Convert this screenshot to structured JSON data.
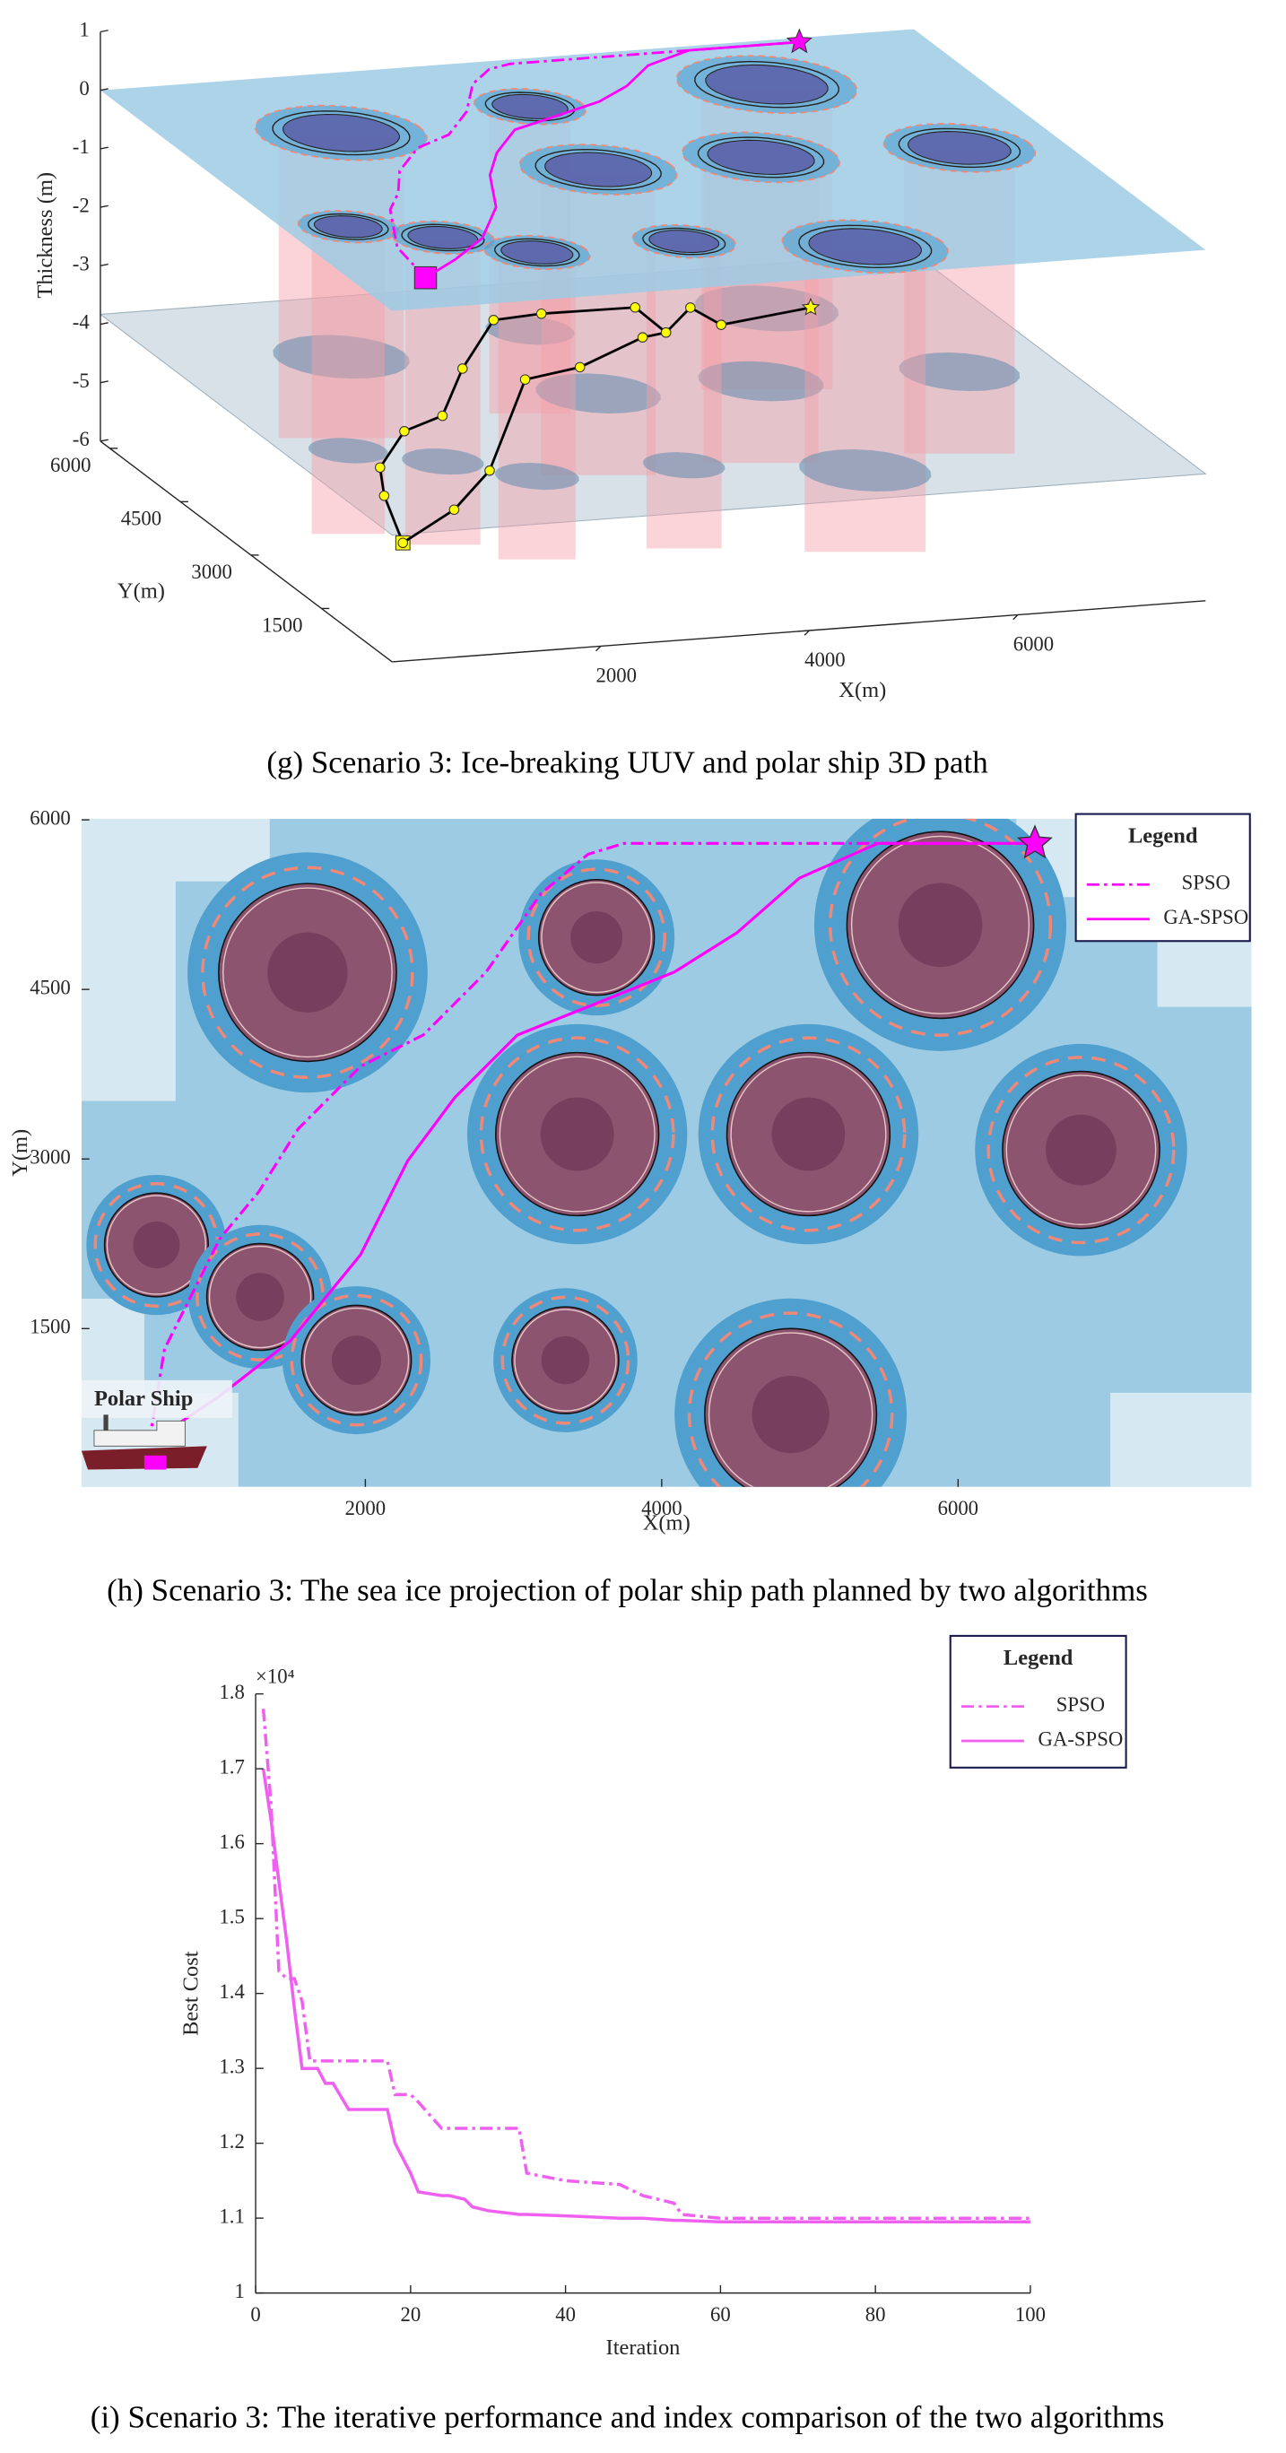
{
  "chart_data": [
    {
      "type": "line3d",
      "caption": "(g) Scenario 3: Ice-breaking UUV and polar ship 3D path",
      "xlabel": "X(m)",
      "ylabel": "Y(m)",
      "zlabel": "Thickness (m)",
      "xlim": [
        0,
        7800
      ],
      "ylim": [
        0,
        6200
      ],
      "zlim": [
        -6,
        1
      ],
      "xticks": [
        2000,
        4000,
        6000
      ],
      "yticks": [
        1500,
        3000,
        4500,
        6000
      ],
      "zticks": [
        1,
        0,
        -1,
        -2,
        -3,
        -4,
        -5,
        -6
      ],
      "series": [
        {
          "color": "#ff00ff",
          "style": "dashdot",
          "x": [
            540,
            645,
            857,
            1016,
            1280,
            1545,
            1968,
            2391,
            2814,
            3185,
            3502,
            3745,
            6518
          ],
          "y": [
            486,
            1319,
            1875,
            2292,
            2708,
            3264,
            3819,
            4097,
            4653,
            5347,
            5695,
            5792,
            5792
          ],
          "z": [
            0.2,
            0.2,
            0.2,
            0.2,
            0.2,
            0.2,
            0.2,
            0.2,
            0.2,
            0.2,
            0.2,
            0.2,
            0.2
          ]
        },
        {
          "color": "#ff00ff",
          "style": "solid",
          "x": [
            540,
            1016,
            1492,
            1968,
            2286,
            2603,
            3026,
            3555,
            4084,
            4507,
            4930,
            5459,
            6518
          ],
          "y": [
            486,
            903,
            1389,
            2153,
            2986,
            3542,
            4097,
            4375,
            4653,
            5000,
            5486,
            5792,
            5792
          ],
          "z": [
            0.2,
            0.2,
            0.2,
            0.2,
            0.2,
            0.2,
            0.2,
            0.2,
            0.2,
            0.2,
            0.2,
            0.2,
            0.2
          ]
        },
        {
          "color": "#000000",
          "marker_color": "#ffff00",
          "style": "solid",
          "x": [
            320,
            700,
            990,
            1620,
            2130,
            2850,
            3680,
            4170,
            5060,
            5040,
            5540,
            5610,
            6590
          ],
          "y": [
            480,
            1720,
            2450,
            3330,
            3650,
            4820,
            6000,
            6070,
            6050,
            5350,
            5940,
            5440,
            5710
          ],
          "z": [
            -4.3,
            -4.3,
            -4.3,
            -4.3,
            -4.3,
            -4.3,
            -4.3,
            -4.3,
            -4.3,
            -4.3,
            -4.3,
            -4.3,
            -4.3
          ]
        },
        {
          "color": "#000000",
          "marker_color": "#ffff00",
          "style": "solid",
          "x": [
            320,
            1150,
            1910,
            3270,
            3890,
            4780,
            5040
          ],
          "y": [
            480,
            1230,
            2160,
            4420,
            4630,
            5270,
            5350
          ],
          "z": [
            -4.3,
            -4.3,
            -4.3,
            -4.3,
            -4.3,
            -4.3,
            -4.3
          ]
        }
      ]
    },
    {
      "type": "line",
      "caption": "(h) Scenario 3: The sea ice projection of polar ship path planned by two algorithms",
      "xlabel": "X(m)",
      "ylabel": "Y(m)",
      "annotation": "Polar Ship",
      "legend_title": "Legend",
      "legend": "upper right",
      "xlim": [
        85,
        7980
      ],
      "ylim": [
        100,
        6010
      ],
      "xticks": [
        2000,
        4000,
        6000
      ],
      "yticks": [
        1500,
        3000,
        4500,
        6000
      ],
      "obstacles": [
        {
          "x": 1610,
          "y": 4650,
          "r": 600
        },
        {
          "x": 3560,
          "y": 4960,
          "r": 390
        },
        {
          "x": 5880,
          "y": 5070,
          "r": 630
        },
        {
          "x": 3430,
          "y": 3220,
          "r": 550
        },
        {
          "x": 4990,
          "y": 3220,
          "r": 550
        },
        {
          "x": 6830,
          "y": 3080,
          "r": 530
        },
        {
          "x": 590,
          "y": 2240,
          "r": 350
        },
        {
          "x": 1290,
          "y": 1780,
          "r": 360
        },
        {
          "x": 1940,
          "y": 1220,
          "r": 370
        },
        {
          "x": 3350,
          "y": 1220,
          "r": 360
        },
        {
          "x": 4870,
          "y": 740,
          "r": 580
        }
      ],
      "series": [
        {
          "name": "SPSO",
          "color": "#ff00ff",
          "style": "dashdot",
          "x": [
            540,
            645,
            857,
            1016,
            1280,
            1545,
            1968,
            2391,
            2814,
            3185,
            3502,
            3745,
            6518
          ],
          "values": [
            486,
            1319,
            1875,
            2292,
            2708,
            3264,
            3819,
            4097,
            4653,
            5347,
            5695,
            5792,
            5792
          ]
        },
        {
          "name": "GA-SPSO",
          "color": "#ff00ff",
          "style": "solid",
          "x": [
            540,
            1016,
            1492,
            1968,
            2286,
            2603,
            3026,
            3555,
            4084,
            4507,
            4930,
            5459,
            6518
          ],
          "values": [
            486,
            903,
            1389,
            2153,
            2986,
            3542,
            4097,
            4375,
            4653,
            5000,
            5486,
            5792,
            5792
          ]
        }
      ]
    },
    {
      "type": "line",
      "caption": "(i) Scenario 3: The iterative performance and index comparison of the two algorithms",
      "xlabel": "Iteration",
      "ylabel": "Best Cost",
      "y_exponent_label": "×10⁴",
      "legend_title": "Legend",
      "legend": "upper right",
      "xlim": [
        0,
        100
      ],
      "ylim": [
        1,
        1.8
      ],
      "xticks": [
        0,
        20,
        40,
        60,
        80,
        100
      ],
      "yticks": [
        1,
        1.1,
        1.2,
        1.3,
        1.4,
        1.5,
        1.6,
        1.7,
        1.8
      ],
      "x": [
        1,
        2,
        3,
        4,
        5,
        6,
        7,
        8,
        9,
        10,
        12,
        17,
        18,
        20,
        21,
        24,
        25,
        27,
        28,
        30,
        34,
        35,
        40,
        47,
        50,
        54,
        55,
        60,
        100
      ],
      "series": [
        {
          "name": "SPSO",
          "color": "#f060f0",
          "style": "dashdot",
          "values": [
            1.78,
            1.65,
            1.43,
            1.42,
            1.42,
            1.39,
            1.31,
            1.31,
            1.31,
            1.31,
            1.31,
            1.31,
            1.265,
            1.265,
            1.255,
            1.22,
            1.22,
            1.22,
            1.22,
            1.22,
            1.22,
            1.16,
            1.15,
            1.145,
            1.13,
            1.12,
            1.105,
            1.1,
            1.1
          ]
        },
        {
          "name": "GA-SPSO",
          "color": "#f060f0",
          "style": "solid",
          "values": [
            1.7,
            1.63,
            1.55,
            1.47,
            1.38,
            1.3,
            1.3,
            1.3,
            1.28,
            1.28,
            1.245,
            1.245,
            1.2,
            1.16,
            1.135,
            1.13,
            1.13,
            1.125,
            1.115,
            1.11,
            1.105,
            1.105,
            1.103,
            1.1,
            1.1,
            1.097,
            1.097,
            1.095,
            1.095
          ]
        }
      ]
    }
  ]
}
